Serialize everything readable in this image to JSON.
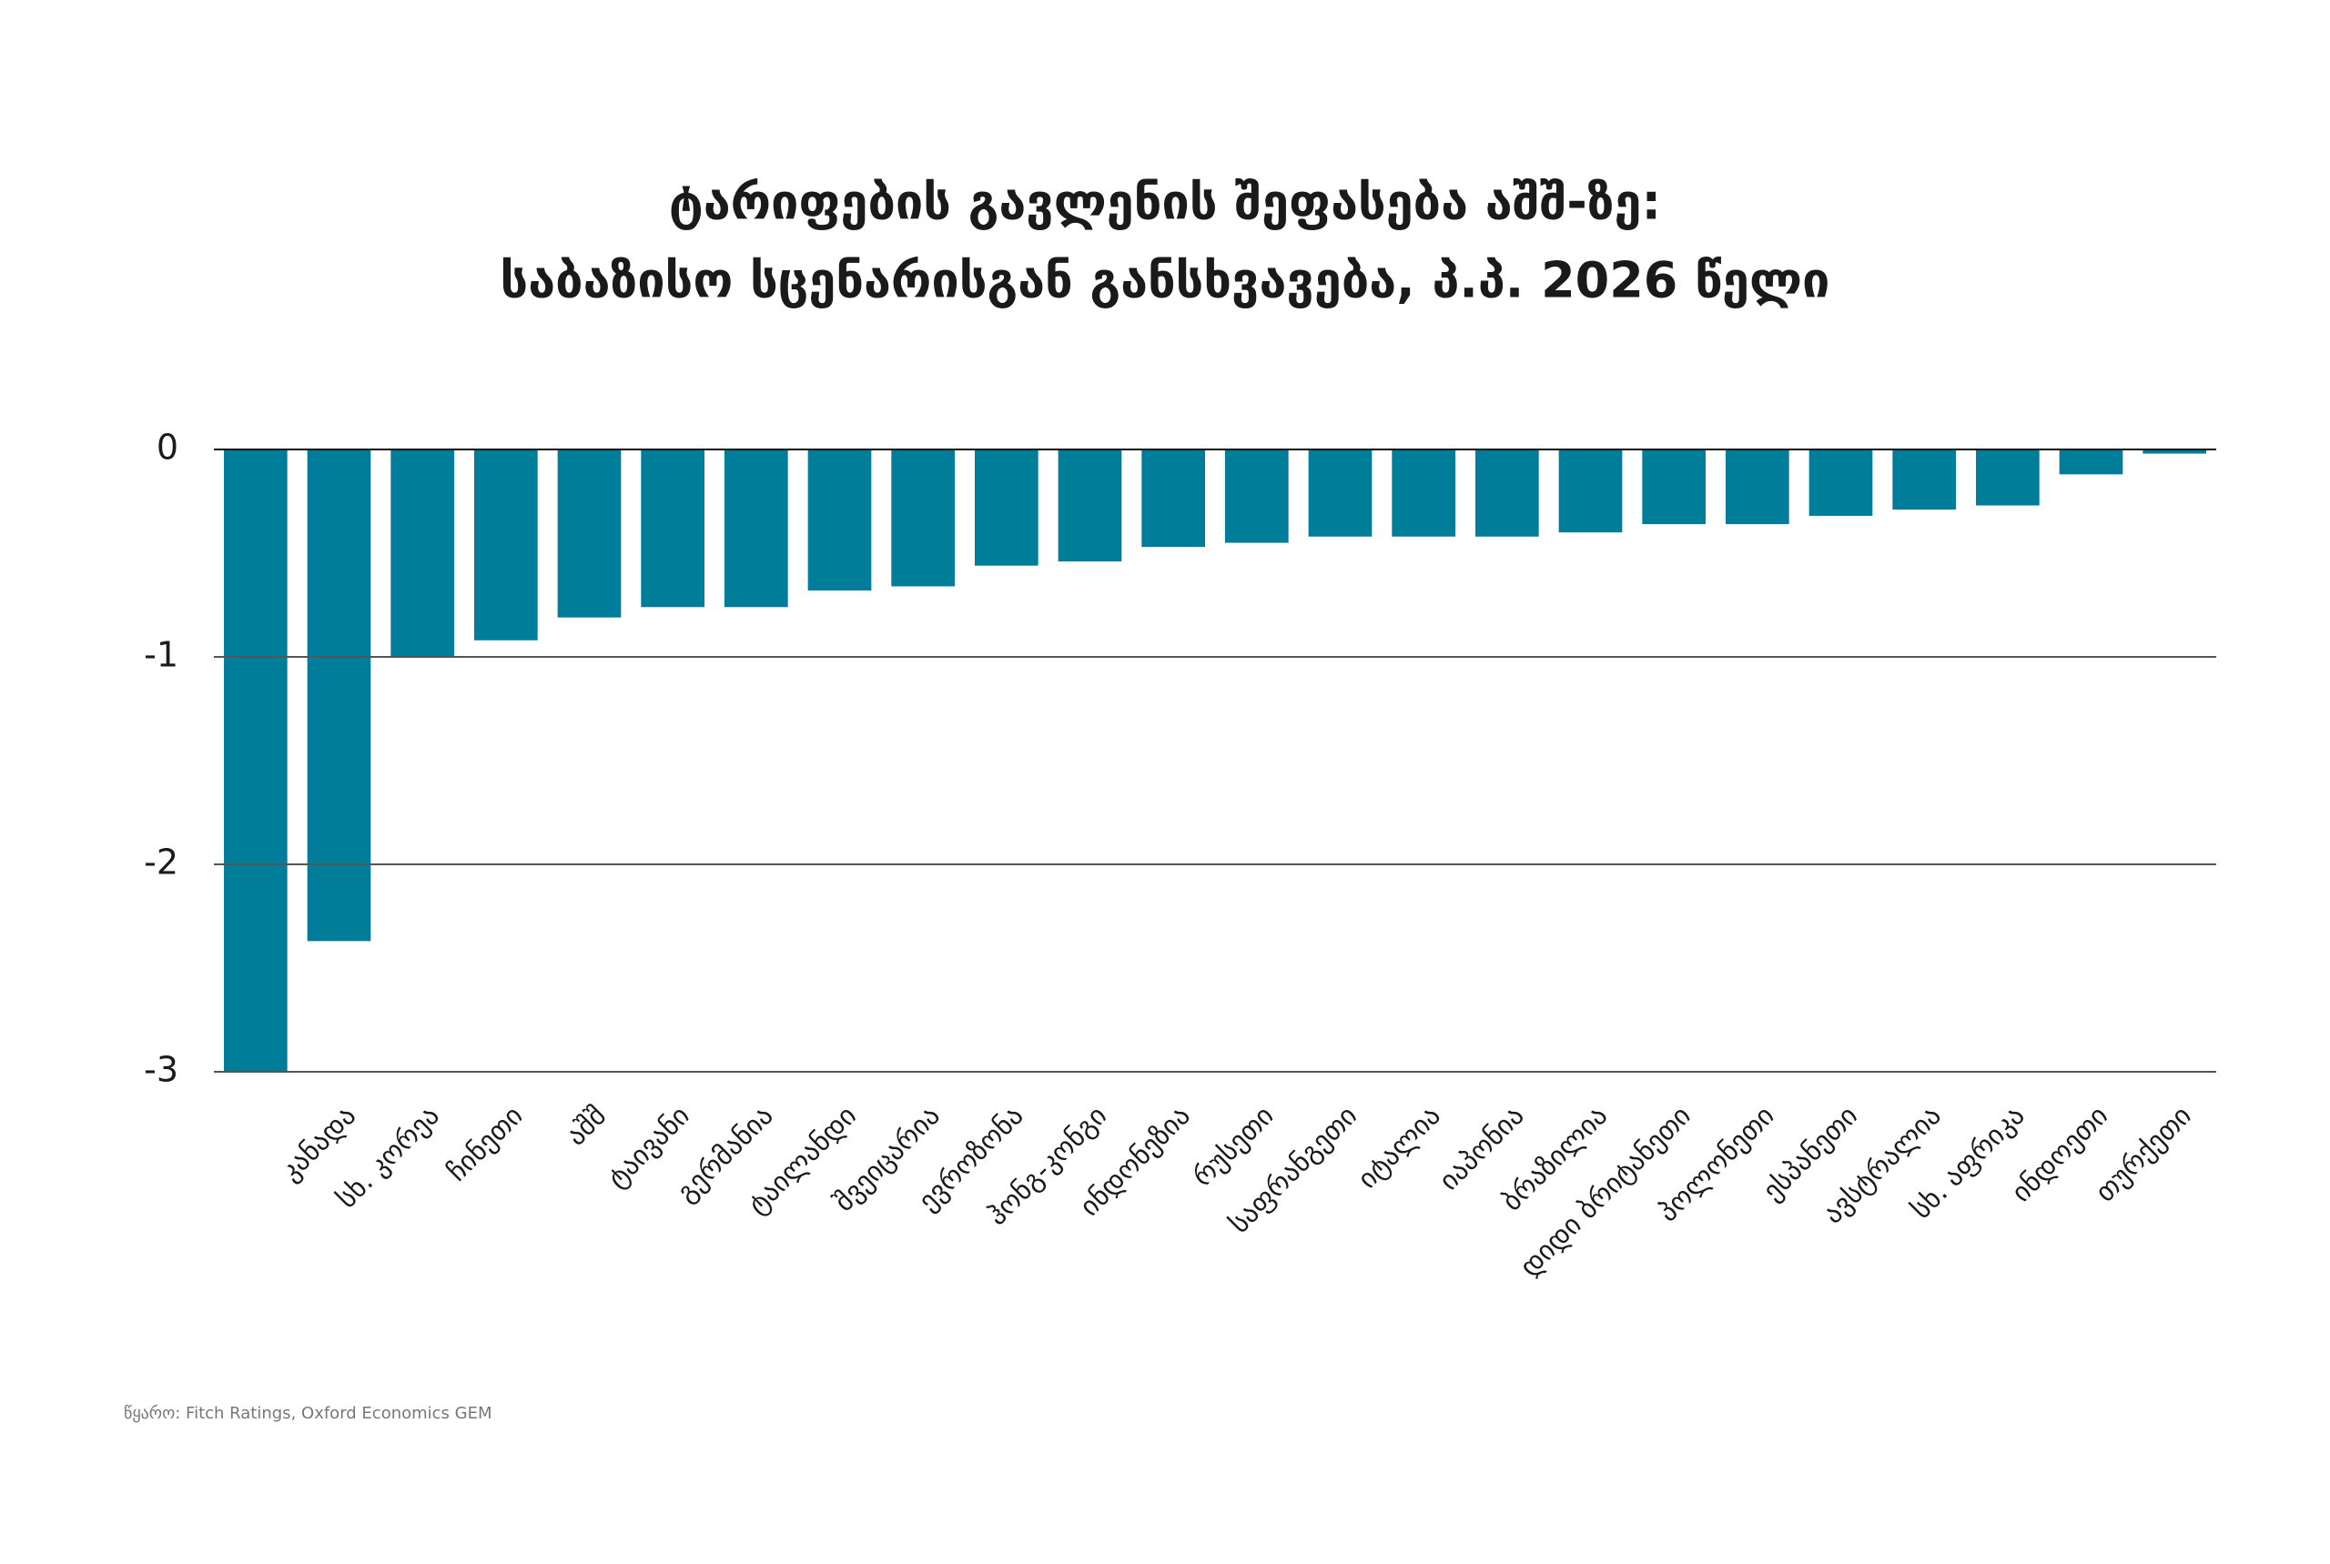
{
  "chart_data": {
    "type": "bar",
    "title": [
      "ტარიფების გავლენის შეფასება აშშ-ზე:",
      "საბაზისო სცენარისგან განსხვავება, პ.პ. 2026 წელი"
    ],
    "categories": [
      null,
      "კანადა",
      "სხ. კორეა",
      "ჩინეთი",
      "აშშ",
      "ტაივანი",
      "გერმანია",
      "ტაილანდი",
      "შვეიცარია",
      "ევროზონა",
      "ჰონგ-კონგი",
      "ინდონეზია",
      "რუსეთი",
      "საფრანგეთი",
      "იტალია",
      "იაპონია",
      "ბრაზილია",
      "დიდი ბრიტანეთი",
      "პოლონეთი",
      "ესპანეთი",
      "ავსტრალია",
      "სხ. აფრიკა",
      "ინდოეთი",
      "თურქეთი"
    ],
    "values": [
      -3.0,
      -2.37,
      -1.0,
      -0.92,
      -0.81,
      -0.76,
      -0.76,
      -0.68,
      -0.66,
      -0.56,
      -0.54,
      -0.47,
      -0.45,
      -0.42,
      -0.42,
      -0.42,
      -0.4,
      -0.36,
      -0.36,
      -0.32,
      -0.29,
      -0.27,
      -0.12,
      -0.02
    ],
    "color": "#007d99",
    "ylim": [
      -3,
      0
    ],
    "yticks": [
      0,
      -1,
      -2,
      -3
    ],
    "grid": true,
    "source": "წყარო: Fitch Ratings, Oxford Economics GEM"
  }
}
